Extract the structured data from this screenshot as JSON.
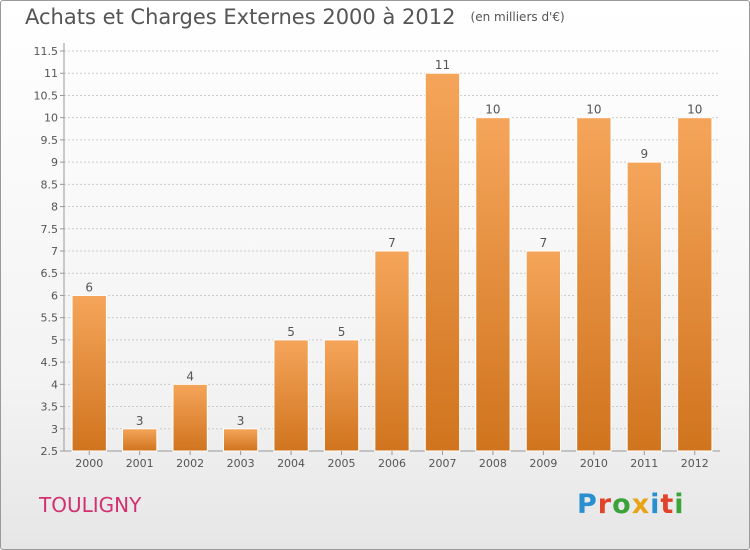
{
  "title": "Achats et Charges Externes 2000 à 2012",
  "subtitle": "(en milliers d'€)",
  "commune": "TOULIGNY",
  "logo": {
    "letters": [
      "P",
      "r",
      "o",
      "x",
      "i",
      "t",
      "i"
    ],
    "colors": [
      "#2a8fd0",
      "#e0432a",
      "#3aa33a",
      "#e8a317",
      "#2a8fd0",
      "#e0432a",
      "#3aa33a"
    ]
  },
  "colors": {
    "bar_top": "#f5a55a",
    "bar_bottom": "#d0741e",
    "grid": "#cccccc",
    "text": "#555555",
    "brand": "#d1326f"
  },
  "chart_data": {
    "type": "bar",
    "categories": [
      "2000",
      "2001",
      "2002",
      "2003",
      "2004",
      "2005",
      "2006",
      "2007",
      "2008",
      "2009",
      "2010",
      "2011",
      "2012"
    ],
    "values": [
      6,
      3,
      4,
      3,
      5,
      5,
      7,
      11,
      10,
      7,
      10,
      9,
      10
    ],
    "data_labels": [
      "6",
      "3",
      "4",
      "3",
      "5",
      "5",
      "7",
      "11",
      "10",
      "7",
      "10",
      "9",
      "10"
    ],
    "y_ticks": [
      "2.5",
      "3",
      "3.5",
      "4",
      "4.5",
      "5",
      "5.5",
      "6",
      "6.5",
      "7",
      "7.5",
      "8",
      "8.5",
      "9",
      "9.5",
      "10",
      "10.5",
      "11",
      "11.5"
    ],
    "ylim": [
      2.5,
      11.5
    ],
    "grid": true,
    "legend": false
  }
}
